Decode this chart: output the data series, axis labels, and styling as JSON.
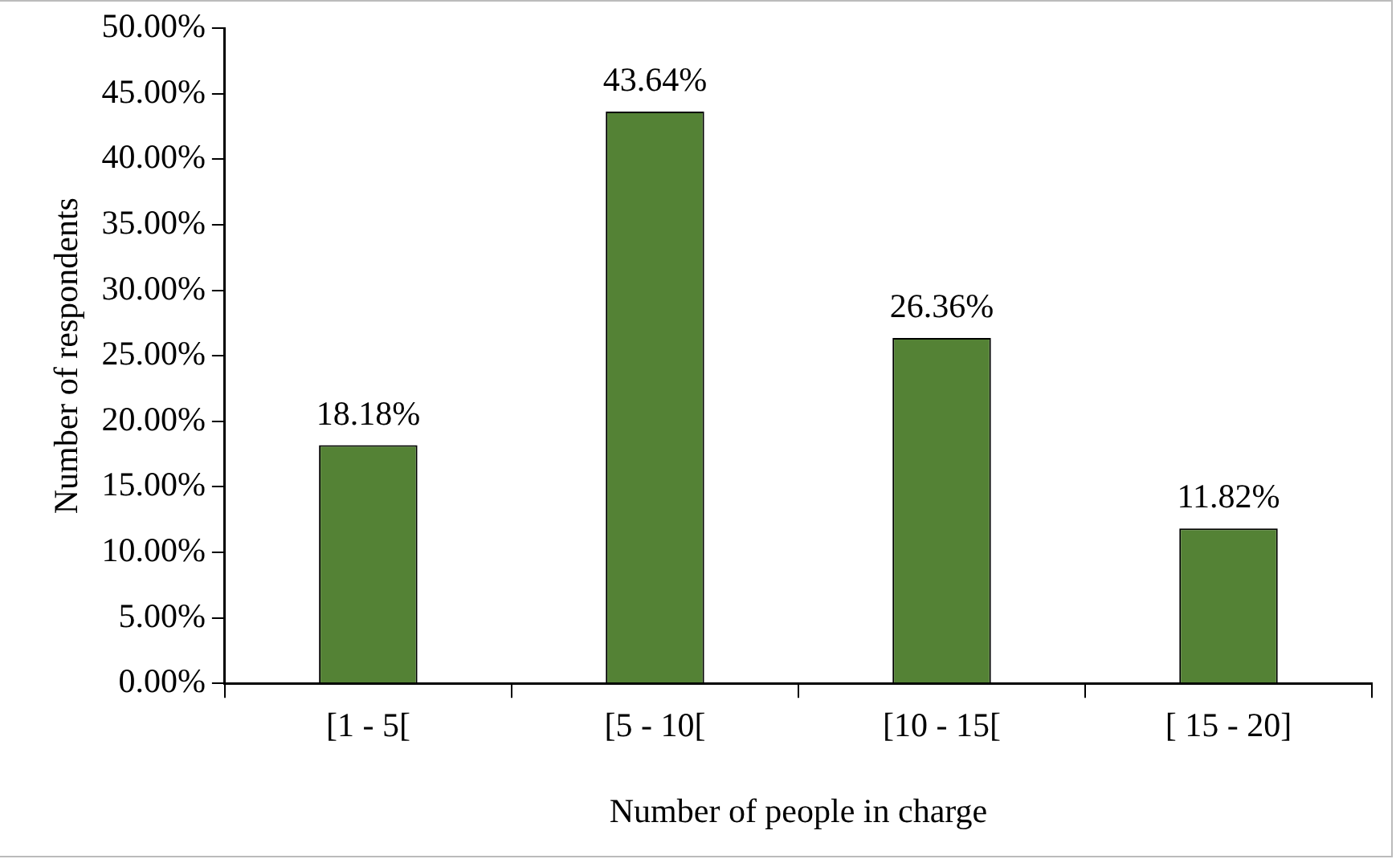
{
  "chart_data": {
    "type": "bar",
    "xlabel": "Number of people in charge",
    "ylabel": "Number of respondents",
    "categories": [
      "[1 - 5[",
      "[5 - 10[",
      "[10 - 15[",
      "[ 15 - 20]"
    ],
    "values": [
      18.18,
      43.64,
      26.36,
      11.82
    ],
    "value_labels": [
      "18.18%",
      "43.64%",
      "26.36%",
      "11.82%"
    ],
    "color": "#548235",
    "ylim": [
      0,
      50
    ],
    "yticks": [
      {
        "value": 0,
        "label": "0.00%"
      },
      {
        "value": 5,
        "label": "5.00%"
      },
      {
        "value": 10,
        "label": "10.00%"
      },
      {
        "value": 15,
        "label": "15.00%"
      },
      {
        "value": 20,
        "label": "20.00%"
      },
      {
        "value": 25,
        "label": "25.00%"
      },
      {
        "value": 30,
        "label": "30.00%"
      },
      {
        "value": 35,
        "label": "35.00%"
      },
      {
        "value": 40,
        "label": "40.00%"
      },
      {
        "value": 45,
        "label": "45.00%"
      },
      {
        "value": 50,
        "label": "50.00%"
      }
    ],
    "grid": false,
    "legend": false
  }
}
